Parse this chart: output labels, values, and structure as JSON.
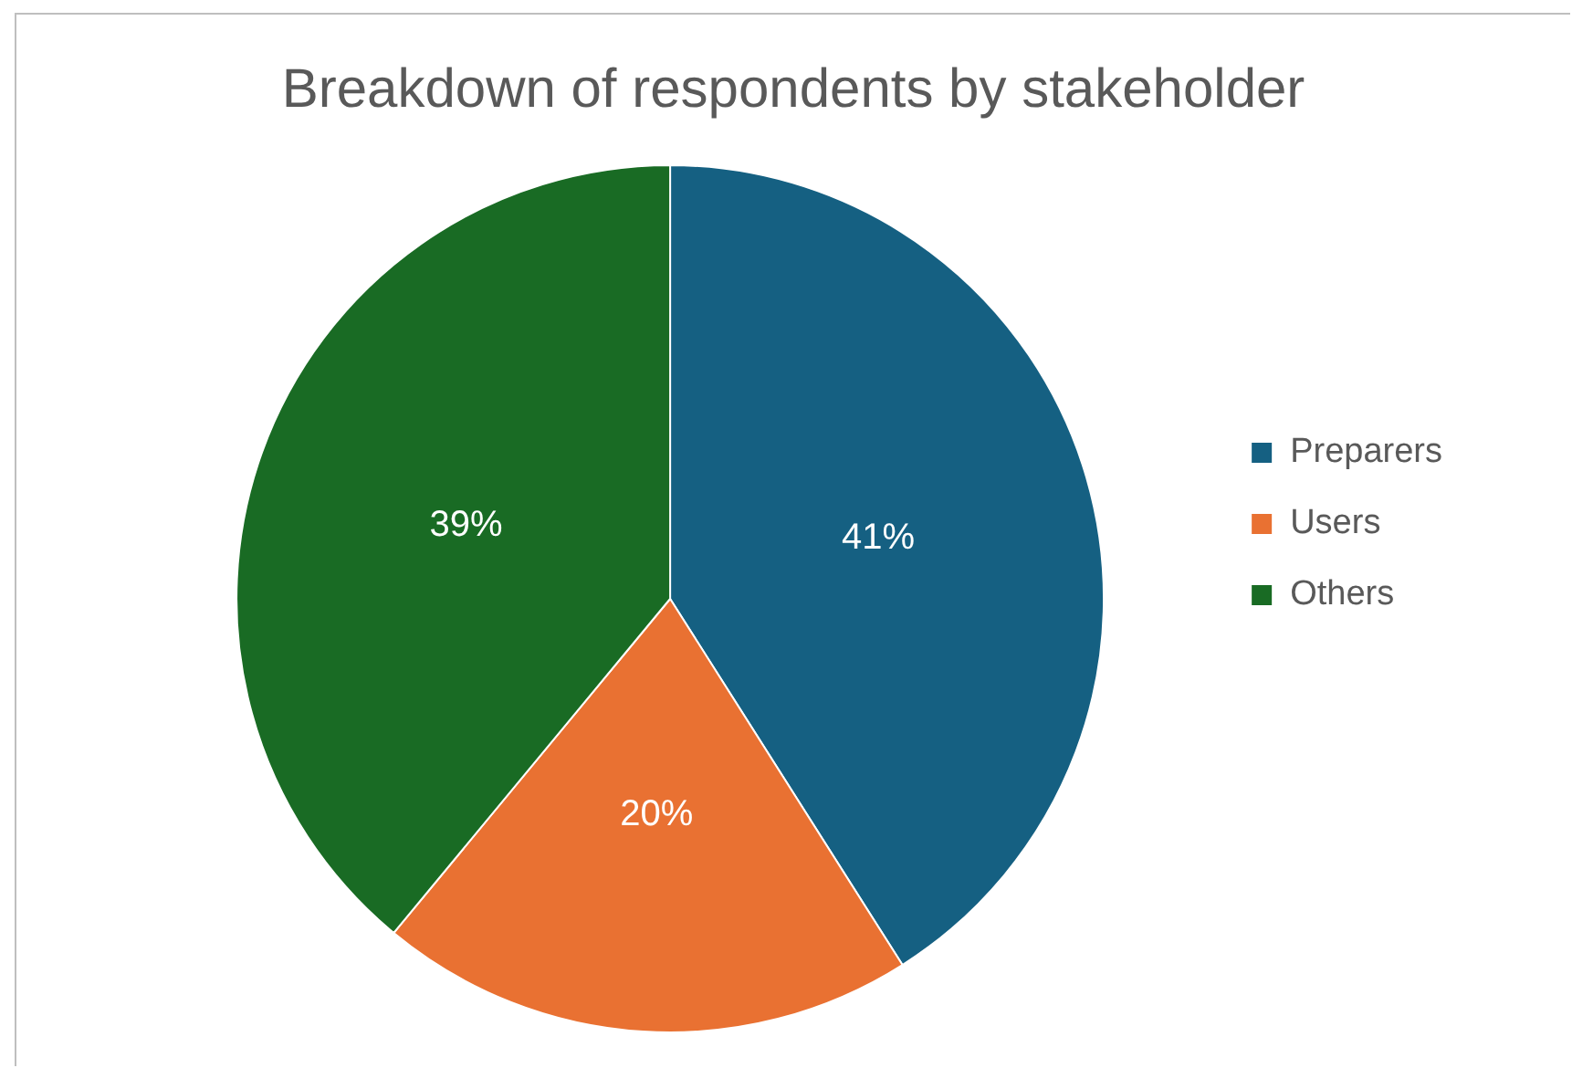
{
  "chart_data": {
    "type": "pie",
    "title": "Breakdown of respondents by stakeholder",
    "categories": [
      "Preparers",
      "Users",
      "Others"
    ],
    "values": [
      41,
      20,
      39
    ],
    "colors": [
      "#156082",
      "#e97132",
      "#196b24"
    ],
    "value_labels": [
      "41%",
      "20%",
      "39%"
    ],
    "legend": "right"
  }
}
